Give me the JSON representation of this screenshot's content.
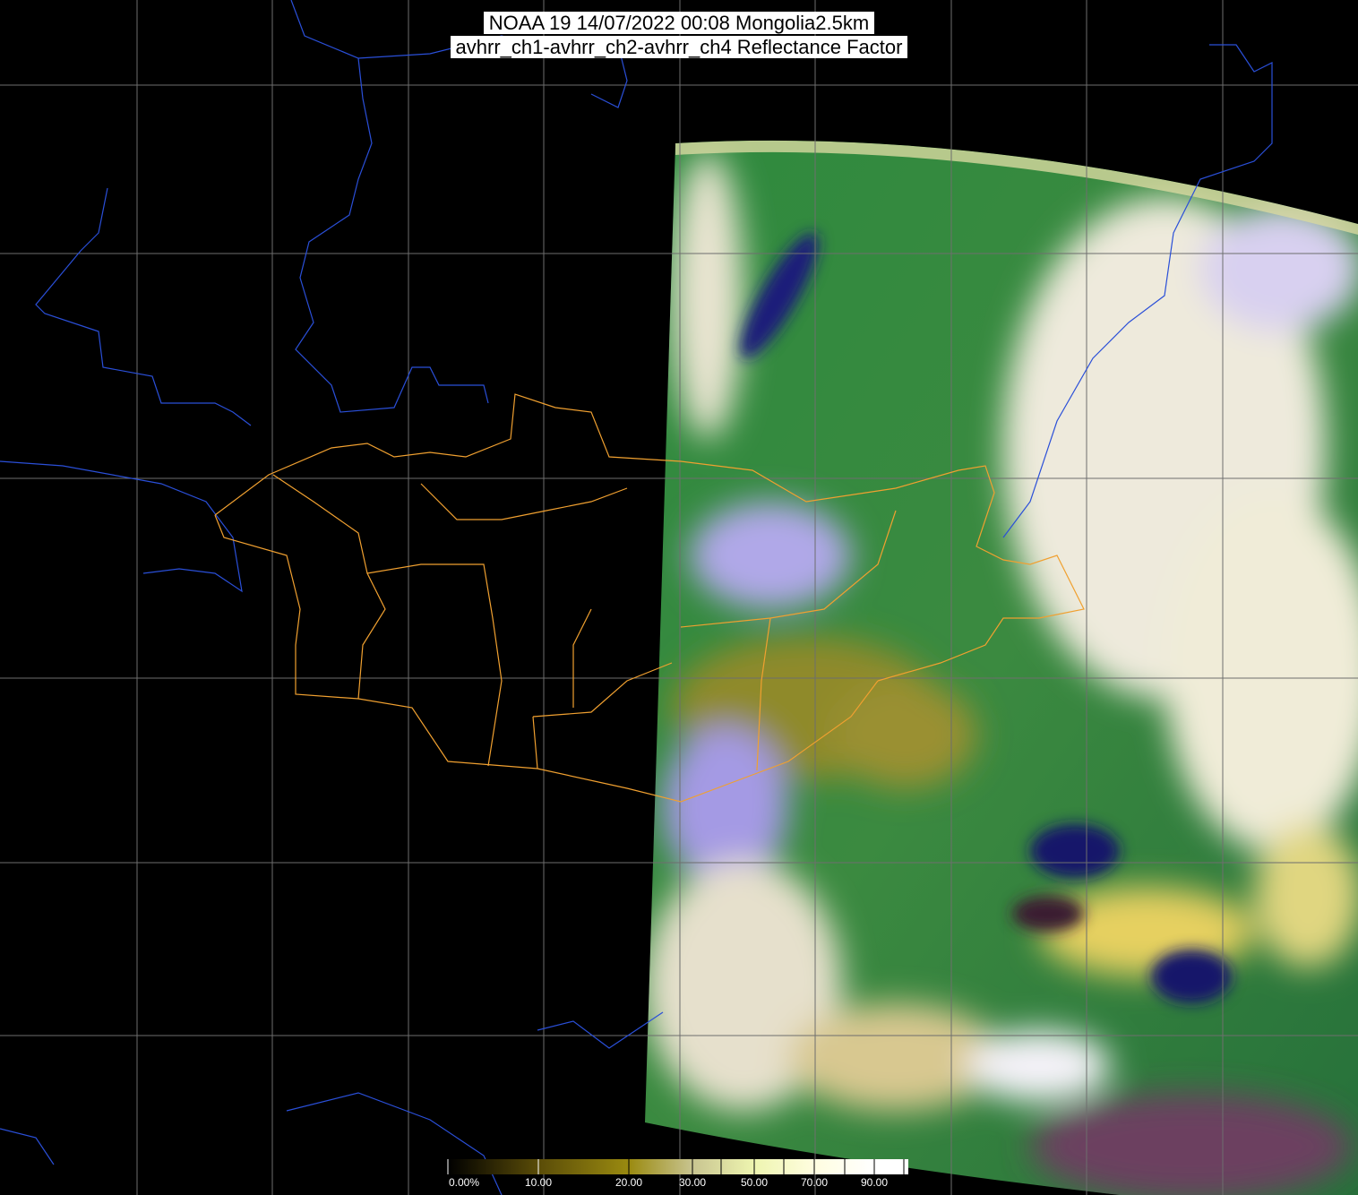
{
  "title": {
    "line1": "NOAA 19 14/07/2022 00:08 Mongolia2.5km",
    "line2": "avhrr_ch1-avhrr_ch2-avhrr_ch4 Reflectance Factor"
  },
  "colorbar": {
    "labels": [
      "0.00%",
      "10.00",
      "20.00",
      "30.00",
      "50.00",
      "70.00",
      "90.00"
    ],
    "label_values": [
      0,
      10,
      20,
      30,
      50,
      70,
      90
    ],
    "tick_values": [
      0,
      10,
      20,
      30,
      40,
      50,
      60,
      70,
      80,
      90,
      100
    ],
    "colors": [
      "#000000",
      "#5a4c08",
      "#9a8a10",
      "#c8c490",
      "#eef5b0",
      "#fffde0",
      "#ffffff"
    ]
  },
  "map": {
    "background": "#000000",
    "grid_color": "#6e6e6e",
    "coastline_color": "#2a4fd8",
    "lake_color": "#1f7a7a",
    "admin_border_color": "#f0a030",
    "imagery_colors": {
      "land": "#2f8a45",
      "cloud": "#f2eedc",
      "thin_cloud": "#9a90e0",
      "desert": "#8f8a2a",
      "water": "#14146a",
      "yellow_cloud": "#e6d060"
    }
  }
}
